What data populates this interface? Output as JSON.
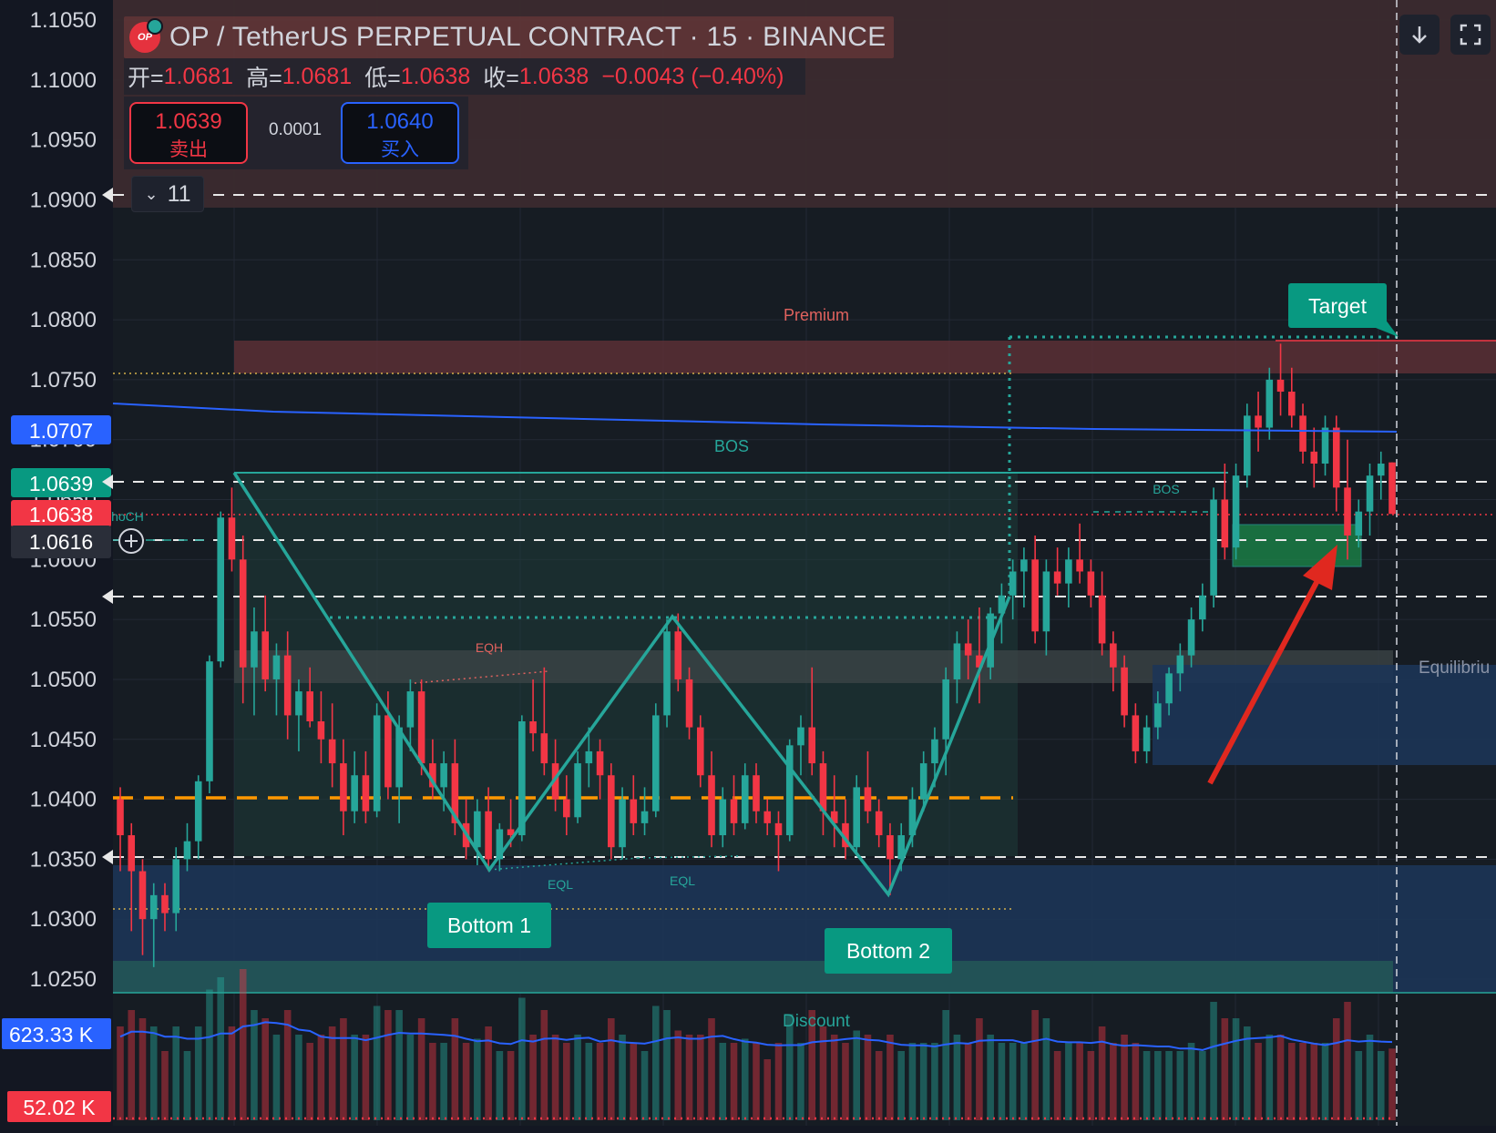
{
  "header": {
    "title": "OP / TetherUS PERPETUAL CONTRACT · 15 · BINANCE",
    "logo_text": "OP"
  },
  "ohlc": {
    "open_label": "开=",
    "open": "1.0681",
    "high_label": "高=",
    "high": "1.0681",
    "low_label": "低=",
    "low": "1.0638",
    "close_label": "收=",
    "close": "1.0638",
    "change": "−0.0043 (−0.40%)"
  },
  "trade": {
    "sell_price": "1.0639",
    "sell_label": "卖出",
    "spread": "0.0001",
    "buy_price": "1.0640",
    "buy_label": "买入"
  },
  "indicators_collapsed_count": "11",
  "icons": {
    "scroll_button": "arrow-down-icon",
    "fullscreen_button": "fullscreen-icon",
    "add_alert": "plus-circle-icon"
  },
  "colors": {
    "background": "#131722",
    "up": "#26a69a",
    "down": "#f23645",
    "ma_line": "#2962ff",
    "premium_zone": "#5b2f35",
    "discount_zone": "#1c3557",
    "structure_line": "#26a69a",
    "pattern_fill": "#1f3c3a",
    "arrow": "#e0281f",
    "dashed_level": "#ff9800"
  },
  "price_axis": {
    "ticks": [
      "1.1050",
      "1.1000",
      "1.0950",
      "1.0900",
      "1.0850",
      "1.0800",
      "1.0750",
      "1.0700",
      "1.0650",
      "1.0600",
      "1.0550",
      "1.0500",
      "1.0450",
      "1.0400",
      "1.0350",
      "1.0300",
      "1.0250"
    ],
    "labels": [
      {
        "text": "1.0707",
        "kind": "ma"
      },
      {
        "text": "1.0639",
        "kind": "bid"
      },
      {
        "text": "1.0638",
        "kind": "last"
      },
      {
        "text": "1.0616",
        "kind": "crosshair"
      }
    ]
  },
  "volume_axis": {
    "labels": [
      {
        "text": "623.33 K",
        "kind": "ma"
      },
      {
        "text": "52.02 K",
        "kind": "last"
      }
    ]
  },
  "annotations": {
    "premium": "Premium",
    "discount": "Discount",
    "equilibrium": "Equilibriu",
    "bos_main": "BOS",
    "bos_small": "BOS",
    "choch": "ChoCH",
    "eqh": "EQH",
    "eql_1": "EQL",
    "eql_2": "EQL",
    "target": "Target",
    "bottom_1": "Bottom 1",
    "bottom_2": "Bottom 2"
  },
  "chart_data": {
    "type": "candlestick",
    "symbol": "OP / TetherUS PERPETUAL CONTRACT",
    "exchange": "BINANCE",
    "interval": "15",
    "y_range": [
      1.023,
      1.1055
    ],
    "candles": [
      [
        1.04,
        1.041,
        1.034,
        1.037
      ],
      [
        1.037,
        1.038,
        1.029,
        1.034
      ],
      [
        1.034,
        1.035,
        1.027,
        1.03
      ],
      [
        1.03,
        1.033,
        1.026,
        1.032
      ],
      [
        1.032,
        1.033,
        1.029,
        1.0305
      ],
      [
        1.0305,
        1.036,
        1.029,
        1.035
      ],
      [
        1.035,
        1.038,
        1.034,
        1.0365
      ],
      [
        1.0365,
        1.042,
        1.035,
        1.0415
      ],
      [
        1.0415,
        1.052,
        1.0405,
        1.0515
      ],
      [
        1.0515,
        1.064,
        1.051,
        1.0635
      ],
      [
        1.0635,
        1.066,
        1.059,
        1.06
      ],
      [
        1.06,
        1.062,
        1.048,
        1.051
      ],
      [
        1.051,
        1.056,
        1.047,
        1.054
      ],
      [
        1.054,
        1.057,
        1.049,
        1.05
      ],
      [
        1.05,
        1.053,
        1.047,
        1.052
      ],
      [
        1.052,
        1.054,
        1.045,
        1.047
      ],
      [
        1.047,
        1.05,
        1.044,
        1.049
      ],
      [
        1.049,
        1.051,
        1.046,
        1.0465
      ],
      [
        1.0465,
        1.049,
        1.043,
        1.045
      ],
      [
        1.045,
        1.048,
        1.041,
        1.043
      ],
      [
        1.043,
        1.045,
        1.037,
        1.039
      ],
      [
        1.039,
        1.044,
        1.038,
        1.042
      ],
      [
        1.042,
        1.044,
        1.038,
        1.039
      ],
      [
        1.039,
        1.048,
        1.0385,
        1.047
      ],
      [
        1.047,
        1.049,
        1.04,
        1.041
      ],
      [
        1.041,
        1.047,
        1.038,
        1.046
      ],
      [
        1.046,
        1.05,
        1.044,
        1.049
      ],
      [
        1.049,
        1.05,
        1.042,
        1.043
      ],
      [
        1.043,
        1.045,
        1.04,
        1.041
      ],
      [
        1.041,
        1.044,
        1.039,
        1.043
      ],
      [
        1.043,
        1.045,
        1.037,
        1.038
      ],
      [
        1.038,
        1.04,
        1.035,
        1.036
      ],
      [
        1.036,
        1.04,
        1.0345,
        1.039
      ],
      [
        1.039,
        1.041,
        1.034,
        1.035
      ],
      [
        1.035,
        1.038,
        1.034,
        1.0375
      ],
      [
        1.0375,
        1.04,
        1.036,
        1.037
      ],
      [
        1.037,
        1.047,
        1.0365,
        1.0465
      ],
      [
        1.0465,
        1.05,
        1.044,
        1.0455
      ],
      [
        1.0455,
        1.051,
        1.042,
        1.043
      ],
      [
        1.043,
        1.045,
        1.039,
        1.04
      ],
      [
        1.04,
        1.042,
        1.037,
        1.0385
      ],
      [
        1.0385,
        1.044,
        1.038,
        1.043
      ],
      [
        1.043,
        1.046,
        1.041,
        1.044
      ],
      [
        1.044,
        1.045,
        1.04,
        1.042
      ],
      [
        1.042,
        1.043,
        1.035,
        1.036
      ],
      [
        1.036,
        1.041,
        1.035,
        1.04
      ],
      [
        1.04,
        1.042,
        1.037,
        1.038
      ],
      [
        1.038,
        1.041,
        1.037,
        1.039
      ],
      [
        1.039,
        1.048,
        1.0385,
        1.047
      ],
      [
        1.047,
        1.055,
        1.046,
        1.054
      ],
      [
        1.054,
        1.0555,
        1.049,
        1.05
      ],
      [
        1.05,
        1.051,
        1.045,
        1.046
      ],
      [
        1.046,
        1.047,
        1.041,
        1.042
      ],
      [
        1.042,
        1.044,
        1.036,
        1.037
      ],
      [
        1.037,
        1.041,
        1.036,
        1.04
      ],
      [
        1.04,
        1.042,
        1.037,
        1.038
      ],
      [
        1.038,
        1.043,
        1.0375,
        1.042
      ],
      [
        1.042,
        1.043,
        1.038,
        1.039
      ],
      [
        1.039,
        1.04,
        1.037,
        1.038
      ],
      [
        1.038,
        1.039,
        1.034,
        1.037
      ],
      [
        1.037,
        1.045,
        1.0365,
        1.0445
      ],
      [
        1.0445,
        1.047,
        1.042,
        1.046
      ],
      [
        1.046,
        1.051,
        1.042,
        1.043
      ],
      [
        1.043,
        1.044,
        1.037,
        1.039
      ],
      [
        1.039,
        1.042,
        1.036,
        1.038
      ],
      [
        1.038,
        1.04,
        1.035,
        1.036
      ],
      [
        1.036,
        1.042,
        1.0355,
        1.041
      ],
      [
        1.041,
        1.044,
        1.038,
        1.039
      ],
      [
        1.039,
        1.04,
        1.036,
        1.037
      ],
      [
        1.037,
        1.038,
        1.032,
        1.035
      ],
      [
        1.035,
        1.038,
        1.034,
        1.037
      ],
      [
        1.037,
        1.041,
        1.036,
        1.04
      ],
      [
        1.04,
        1.044,
        1.039,
        1.043
      ],
      [
        1.043,
        1.046,
        1.041,
        1.045
      ],
      [
        1.045,
        1.051,
        1.042,
        1.05
      ],
      [
        1.05,
        1.054,
        1.048,
        1.053
      ],
      [
        1.053,
        1.055,
        1.05,
        1.052
      ],
      [
        1.052,
        1.056,
        1.048,
        1.051
      ],
      [
        1.051,
        1.056,
        1.05,
        1.0555
      ],
      [
        1.0555,
        1.058,
        1.053,
        1.057
      ],
      [
        1.057,
        1.06,
        1.055,
        1.059
      ],
      [
        1.059,
        1.061,
        1.056,
        1.06
      ],
      [
        1.06,
        1.062,
        1.053,
        1.054
      ],
      [
        1.054,
        1.06,
        1.052,
        1.059
      ],
      [
        1.059,
        1.061,
        1.057,
        1.058
      ],
      [
        1.058,
        1.061,
        1.056,
        1.06
      ],
      [
        1.06,
        1.063,
        1.058,
        1.059
      ],
      [
        1.059,
        1.06,
        1.056,
        1.057
      ],
      [
        1.057,
        1.059,
        1.052,
        1.053
      ],
      [
        1.053,
        1.054,
        1.049,
        1.051
      ],
      [
        1.051,
        1.052,
        1.046,
        1.047
      ],
      [
        1.047,
        1.048,
        1.043,
        1.044
      ],
      [
        1.044,
        1.047,
        1.043,
        1.046
      ],
      [
        1.046,
        1.049,
        1.045,
        1.048
      ],
      [
        1.048,
        1.051,
        1.047,
        1.0505
      ],
      [
        1.0505,
        1.053,
        1.049,
        1.052
      ],
      [
        1.052,
        1.056,
        1.051,
        1.055
      ],
      [
        1.055,
        1.058,
        1.054,
        1.057
      ],
      [
        1.057,
        1.066,
        1.056,
        1.065
      ],
      [
        1.065,
        1.068,
        1.06,
        1.061
      ],
      [
        1.061,
        1.068,
        1.06,
        1.067
      ],
      [
        1.067,
        1.073,
        1.066,
        1.072
      ],
      [
        1.072,
        1.074,
        1.069,
        1.071
      ],
      [
        1.071,
        1.076,
        1.07,
        1.075
      ],
      [
        1.075,
        1.078,
        1.072,
        1.074
      ],
      [
        1.074,
        1.076,
        1.071,
        1.072
      ],
      [
        1.072,
        1.073,
        1.068,
        1.069
      ],
      [
        1.069,
        1.071,
        1.066,
        1.068
      ],
      [
        1.068,
        1.072,
        1.067,
        1.071
      ],
      [
        1.071,
        1.072,
        1.064,
        1.066
      ],
      [
        1.066,
        1.07,
        1.06,
        1.062
      ],
      [
        1.062,
        1.065,
        1.061,
        1.064
      ],
      [
        1.064,
        1.068,
        1.062,
        1.067
      ],
      [
        1.067,
        1.069,
        1.065,
        1.068
      ],
      [
        1.0681,
        1.0681,
        1.0638,
        1.0638
      ]
    ],
    "volume_axis_labels": [
      "623.33 K",
      "52.02 K"
    ],
    "levels": [
      {
        "name": "ma",
        "price": 1.0707
      },
      {
        "name": "bid",
        "price": 1.0639
      },
      {
        "name": "last",
        "price": 1.0638
      },
      {
        "name": "crosshair",
        "price": 1.0616
      }
    ]
  }
}
